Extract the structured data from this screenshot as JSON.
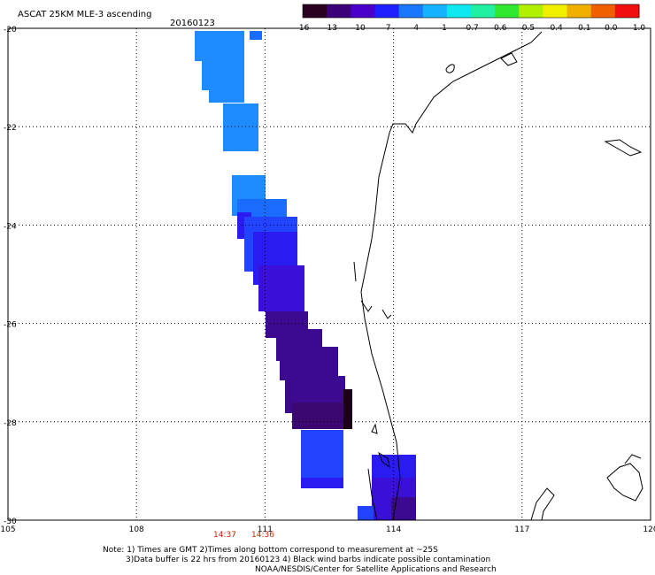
{
  "header": {
    "title": "ASCAT 25KM MLE-3 ascending",
    "date": "20160123"
  },
  "colorbar": {
    "labels": [
      "-16",
      "-13",
      "-10",
      "-7",
      "-4",
      "-1",
      "-0.7",
      "-0.6",
      "-0.5",
      "-0.4",
      "-0.1",
      "0.0",
      "1.0"
    ],
    "colors": [
      "#2a0020",
      "#3c0078",
      "#4a00c8",
      "#2020ff",
      "#1a78ff",
      "#16b4ff",
      "#10e8f0",
      "#20f0a0",
      "#30e830",
      "#b0f000",
      "#f0f000",
      "#f0b000",
      "#f06000",
      "#f01010"
    ]
  },
  "map": {
    "lon_labels": [
      "105",
      "108",
      "111",
      "114",
      "117",
      "120"
    ],
    "lat_labels": [
      "-20",
      "-22",
      "-24",
      "-26",
      "-28",
      "-30"
    ],
    "time_labels": [
      "14:37",
      "14:36"
    ],
    "time_color": "#cc2200"
  },
  "notes": {
    "line1": "Note: 1) Times are GMT 2)Times along bottom correspond to measurement at ~25S",
    "line2": "3)Data buffer is 22 hrs from 20160123 4) Black wind barbs indicate possible contamination",
    "line3": "NOAA/NESDIS/Center for Satellite Applications and Research"
  }
}
